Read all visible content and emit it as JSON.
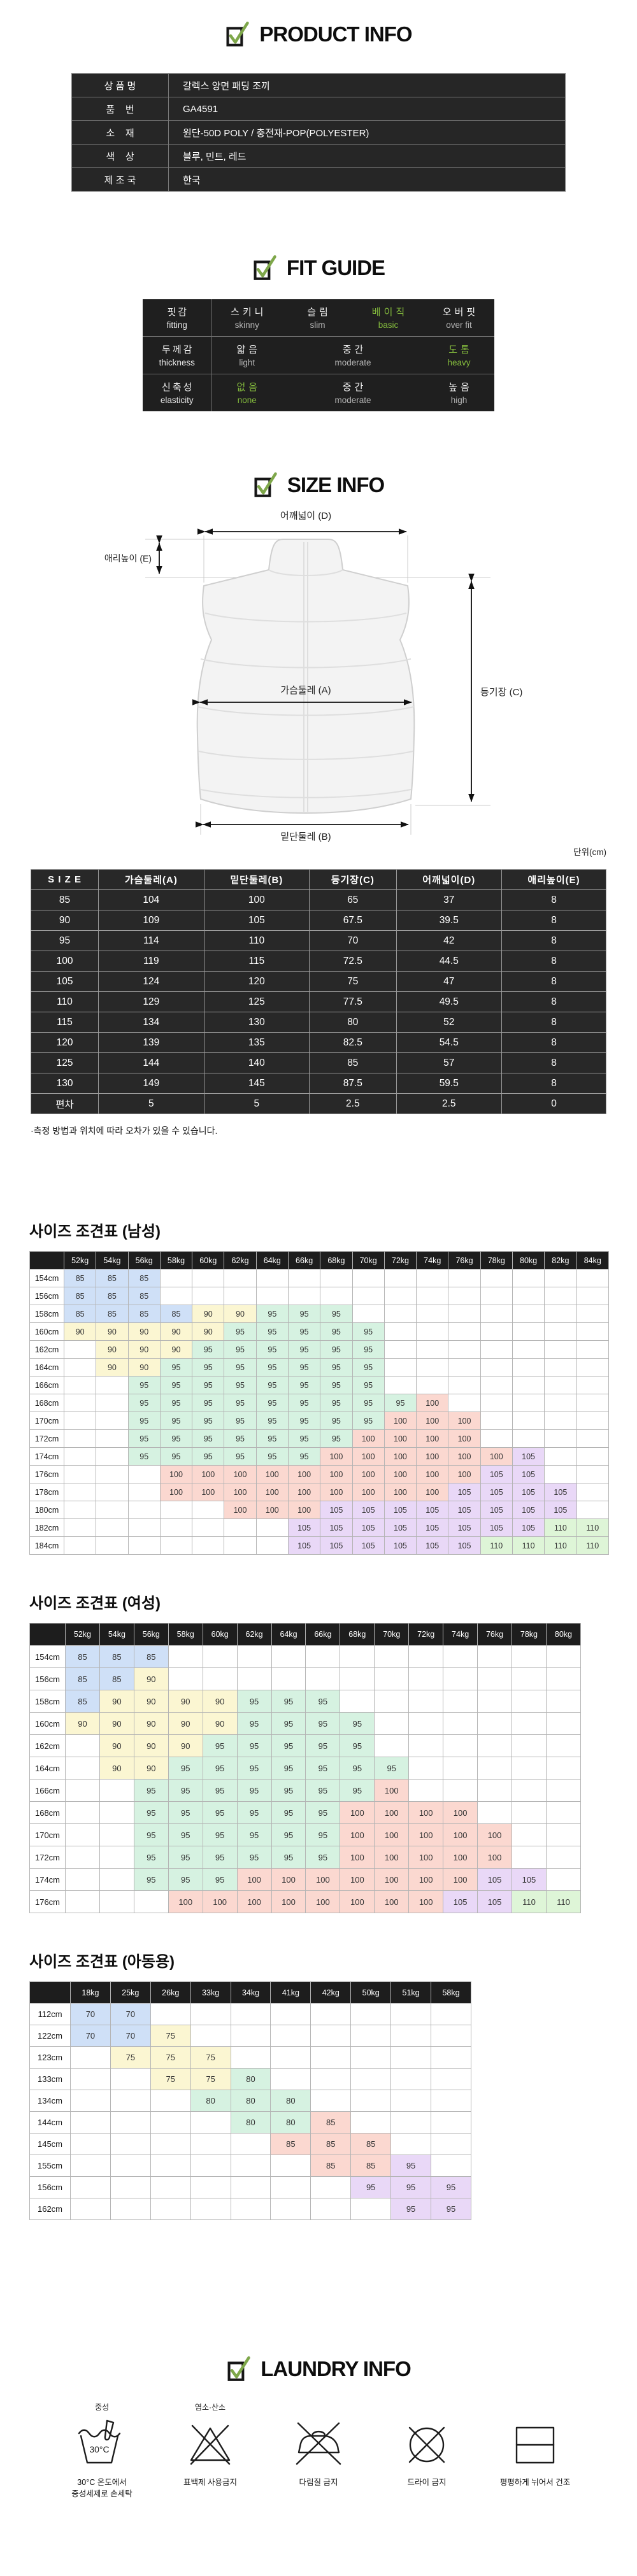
{
  "colors": {
    "accent_green": "#84bb3d",
    "check_green": "#7ea74a",
    "dark_table_bg": "#262626",
    "cell_blue": "#cfe0f7",
    "cell_yellow": "#fbf6d2",
    "cell_mint": "#d6f2e1",
    "cell_pink": "#fbd8d0",
    "cell_purple": "#e9d8f7",
    "cell_green": "#def5d7"
  },
  "product_info": {
    "title": "PRODUCT INFO",
    "rows": [
      {
        "label": "상 품 명",
        "value": "갈렉스 양면 패딩 조끼"
      },
      {
        "label": "품    번",
        "value": "GA4591"
      },
      {
        "label": "소    재",
        "value": "원단-50D POLY / 충전재-POP(POLYESTER)"
      },
      {
        "label": "색    상",
        "value": "블루, 민트, 레드"
      },
      {
        "label": "제 조 국",
        "value": "한국"
      }
    ]
  },
  "fit_guide": {
    "title": "FIT GUIDE",
    "rows": [
      {
        "label_ko": "핏감",
        "label_en": "fitting",
        "cells": [
          {
            "ko": "스키니",
            "en": "skinny",
            "span": 1,
            "selected": false
          },
          {
            "ko": "슬림",
            "en": "slim",
            "span": 1,
            "selected": false
          },
          {
            "ko": "베이직",
            "en": "basic",
            "span": 1,
            "selected": true
          },
          {
            "ko": "오버핏",
            "en": "over fit",
            "span": 1,
            "selected": false
          }
        ]
      },
      {
        "label_ko": "두께감",
        "label_en": "thickness",
        "cells": [
          {
            "ko": "얇음",
            "en": "light",
            "span": 1,
            "selected": false
          },
          {
            "ko": "중간",
            "en": "moderate",
            "span": 2,
            "selected": false
          },
          {
            "ko": "도톰",
            "en": "heavy",
            "span": 1,
            "selected": true
          }
        ]
      },
      {
        "label_ko": "신축성",
        "label_en": "elasticity",
        "cells": [
          {
            "ko": "없음",
            "en": "none",
            "span": 1,
            "selected": true
          },
          {
            "ko": "중간",
            "en": "moderate",
            "span": 2,
            "selected": false
          },
          {
            "ko": "높음",
            "en": "high",
            "span": 1,
            "selected": false
          }
        ]
      }
    ]
  },
  "size_info": {
    "title": "SIZE INFO",
    "unit_note": "단위(cm)",
    "diagram_labels": {
      "shoulder": "어깨넓이 (D)",
      "collar": "애리높이 (E)",
      "chest": "가슴둘레 (A)",
      "length": "등기장 (C)",
      "hem": "밑단둘레 (B)"
    },
    "table": {
      "headers": [
        "S I Z E",
        "가슴둘레(A)",
        "밑단둘레(B)",
        "등기장(C)",
        "어깨넓이(D)",
        "애리높이(E)"
      ],
      "rows": [
        [
          "85",
          "104",
          "100",
          "65",
          "37",
          "8"
        ],
        [
          "90",
          "109",
          "105",
          "67.5",
          "39.5",
          "8"
        ],
        [
          "95",
          "114",
          "110",
          "70",
          "42",
          "8"
        ],
        [
          "100",
          "119",
          "115",
          "72.5",
          "44.5",
          "8"
        ],
        [
          "105",
          "124",
          "120",
          "75",
          "47",
          "8"
        ],
        [
          "110",
          "129",
          "125",
          "77.5",
          "49.5",
          "8"
        ],
        [
          "115",
          "134",
          "130",
          "80",
          "52",
          "8"
        ],
        [
          "120",
          "139",
          "135",
          "82.5",
          "54.5",
          "8"
        ],
        [
          "125",
          "144",
          "140",
          "85",
          "57",
          "8"
        ],
        [
          "130",
          "149",
          "145",
          "87.5",
          "59.5",
          "8"
        ],
        [
          "편차",
          "5",
          "5",
          "2.5",
          "2.5",
          "0"
        ]
      ]
    },
    "note": "·측정 방법과 위치에 따라 오차가 있을 수 있습니다."
  },
  "size_charts": [
    {
      "title": "사이즈 조견표 (남성)",
      "weights": [
        "52kg",
        "54kg",
        "56kg",
        "58kg",
        "60kg",
        "62kg",
        "64kg",
        "66kg",
        "68kg",
        "70kg",
        "72kg",
        "74kg",
        "76kg",
        "78kg",
        "80kg",
        "82kg",
        "84kg"
      ],
      "color_map": {
        "85": "#cfe0f7",
        "90": "#fbf6d2",
        "95": "#d6f2e1",
        "100": "#fbd8d0",
        "105": "#e9d8f7",
        "110": "#def5d7"
      },
      "rows": [
        {
          "height": "154cm",
          "cells": [
            "85",
            "85",
            "85",
            "",
            "",
            "",
            "",
            "",
            "",
            "",
            "",
            "",
            "",
            "",
            "",
            "",
            ""
          ]
        },
        {
          "height": "156cm",
          "cells": [
            "85",
            "85",
            "85",
            "",
            "",
            "",
            "",
            "",
            "",
            "",
            "",
            "",
            "",
            "",
            "",
            "",
            ""
          ]
        },
        {
          "height": "158cm",
          "cells": [
            "85",
            "85",
            "85",
            "85",
            "90",
            "90",
            "95",
            "95",
            "95",
            "",
            "",
            "",
            "",
            "",
            "",
            "",
            ""
          ]
        },
        {
          "height": "160cm",
          "cells": [
            "90",
            "90",
            "90",
            "90",
            "90",
            "95",
            "95",
            "95",
            "95",
            "95",
            "",
            "",
            "",
            "",
            "",
            "",
            ""
          ]
        },
        {
          "height": "162cm",
          "cells": [
            "",
            "90",
            "90",
            "90",
            "95",
            "95",
            "95",
            "95",
            "95",
            "95",
            "",
            "",
            "",
            "",
            "",
            "",
            ""
          ]
        },
        {
          "height": "164cm",
          "cells": [
            "",
            "90",
            "90",
            "95",
            "95",
            "95",
            "95",
            "95",
            "95",
            "95",
            "",
            "",
            "",
            "",
            "",
            "",
            ""
          ]
        },
        {
          "height": "166cm",
          "cells": [
            "",
            "",
            "95",
            "95",
            "95",
            "95",
            "95",
            "95",
            "95",
            "95",
            "",
            "",
            "",
            "",
            "",
            "",
            ""
          ]
        },
        {
          "height": "168cm",
          "cells": [
            "",
            "",
            "95",
            "95",
            "95",
            "95",
            "95",
            "95",
            "95",
            "95",
            "95",
            "100",
            "",
            "",
            "",
            "",
            ""
          ]
        },
        {
          "height": "170cm",
          "cells": [
            "",
            "",
            "95",
            "95",
            "95",
            "95",
            "95",
            "95",
            "95",
            "95",
            "100",
            "100",
            "100",
            "",
            "",
            "",
            ""
          ]
        },
        {
          "height": "172cm",
          "cells": [
            "",
            "",
            "95",
            "95",
            "95",
            "95",
            "95",
            "95",
            "95",
            "100",
            "100",
            "100",
            "100",
            "",
            "",
            "",
            ""
          ]
        },
        {
          "height": "174cm",
          "cells": [
            "",
            "",
            "95",
            "95",
            "95",
            "95",
            "95",
            "95",
            "100",
            "100",
            "100",
            "100",
            "100",
            "100",
            "105",
            "",
            ""
          ]
        },
        {
          "height": "176cm",
          "cells": [
            "",
            "",
            "",
            "100",
            "100",
            "100",
            "100",
            "100",
            "100",
            "100",
            "100",
            "100",
            "100",
            "105",
            "105",
            "",
            ""
          ]
        },
        {
          "height": "178cm",
          "cells": [
            "",
            "",
            "",
            "100",
            "100",
            "100",
            "100",
            "100",
            "100",
            "100",
            "100",
            "100",
            "105",
            "105",
            "105",
            "105",
            ""
          ]
        },
        {
          "height": "180cm",
          "cells": [
            "",
            "",
            "",
            "",
            "",
            "100",
            "100",
            "100",
            "105",
            "105",
            "105",
            "105",
            "105",
            "105",
            "105",
            "105",
            ""
          ]
        },
        {
          "height": "182cm",
          "cells": [
            "",
            "",
            "",
            "",
            "",
            "",
            "",
            "105",
            "105",
            "105",
            "105",
            "105",
            "105",
            "105",
            "105",
            "110",
            "110"
          ]
        },
        {
          "height": "184cm",
          "cells": [
            "",
            "",
            "",
            "",
            "",
            "",
            "",
            "105",
            "105",
            "105",
            "105",
            "105",
            "105",
            "110",
            "110",
            "110",
            "110"
          ]
        }
      ]
    },
    {
      "title": "사이즈 조견표 (여성)",
      "weights": [
        "52kg",
        "54kg",
        "56kg",
        "58kg",
        "60kg",
        "62kg",
        "64kg",
        "66kg",
        "68kg",
        "70kg",
        "72kg",
        "74kg",
        "76kg",
        "78kg",
        "80kg"
      ],
      "color_map": {
        "85": "#cfe0f7",
        "90": "#fbf6d2",
        "95": "#d6f2e1",
        "100": "#fbd8d0",
        "105": "#e9d8f7",
        "110": "#def5d7"
      },
      "rows": [
        {
          "height": "154cm",
          "cells": [
            "85",
            "85",
            "85",
            "",
            "",
            "",
            "",
            "",
            "",
            "",
            "",
            "",
            "",
            "",
            ""
          ]
        },
        {
          "height": "156cm",
          "cells": [
            "85",
            "85",
            "90",
            "",
            "",
            "",
            "",
            "",
            "",
            "",
            "",
            "",
            "",
            "",
            ""
          ]
        },
        {
          "height": "158cm",
          "cells": [
            "85",
            "90",
            "90",
            "90",
            "90",
            "95",
            "95",
            "95",
            "",
            "",
            "",
            "",
            "",
            "",
            ""
          ]
        },
        {
          "height": "160cm",
          "cells": [
            "90",
            "90",
            "90",
            "90",
            "90",
            "95",
            "95",
            "95",
            "95",
            "",
            "",
            "",
            "",
            "",
            ""
          ]
        },
        {
          "height": "162cm",
          "cells": [
            "",
            "90",
            "90",
            "90",
            "95",
            "95",
            "95",
            "95",
            "95",
            "",
            "",
            "",
            "",
            "",
            ""
          ]
        },
        {
          "height": "164cm",
          "cells": [
            "",
            "90",
            "90",
            "95",
            "95",
            "95",
            "95",
            "95",
            "95",
            "95",
            "",
            "",
            "",
            "",
            ""
          ]
        },
        {
          "height": "166cm",
          "cells": [
            "",
            "",
            "95",
            "95",
            "95",
            "95",
            "95",
            "95",
            "95",
            "100",
            "",
            "",
            "",
            "",
            ""
          ]
        },
        {
          "height": "168cm",
          "cells": [
            "",
            "",
            "95",
            "95",
            "95",
            "95",
            "95",
            "95",
            "100",
            "100",
            "100",
            "100",
            "",
            "",
            ""
          ]
        },
        {
          "height": "170cm",
          "cells": [
            "",
            "",
            "95",
            "95",
            "95",
            "95",
            "95",
            "95",
            "100",
            "100",
            "100",
            "100",
            "100",
            "",
            ""
          ]
        },
        {
          "height": "172cm",
          "cells": [
            "",
            "",
            "95",
            "95",
            "95",
            "95",
            "95",
            "95",
            "100",
            "100",
            "100",
            "100",
            "100",
            "",
            ""
          ]
        },
        {
          "height": "174cm",
          "cells": [
            "",
            "",
            "95",
            "95",
            "95",
            "100",
            "100",
            "100",
            "100",
            "100",
            "100",
            "100",
            "105",
            "105",
            ""
          ]
        },
        {
          "height": "176cm",
          "cells": [
            "",
            "",
            "",
            "100",
            "100",
            "100",
            "100",
            "100",
            "100",
            "100",
            "100",
            "105",
            "105",
            "110",
            "110"
          ]
        }
      ]
    },
    {
      "title": "사이즈 조견표 (아동용)",
      "weights": [
        "18kg",
        "25kg",
        "26kg",
        "33kg",
        "34kg",
        "41kg",
        "42kg",
        "50kg",
        "51kg",
        "58kg"
      ],
      "color_map": {
        "70": "#cfe0f7",
        "75": "#fbf6d2",
        "80": "#d6f2e1",
        "85": "#fbd8d0",
        "95": "#e9d8f7"
      },
      "rows": [
        {
          "height": "112cm",
          "cells": [
            "70",
            "70",
            "",
            "",
            "",
            "",
            "",
            "",
            "",
            ""
          ]
        },
        {
          "height": "122cm",
          "cells": [
            "70",
            "70",
            "75",
            "",
            "",
            "",
            "",
            "",
            "",
            ""
          ]
        },
        {
          "height": "123cm",
          "cells": [
            "",
            "75",
            "75",
            "75",
            "",
            "",
            "",
            "",
            "",
            ""
          ]
        },
        {
          "height": "133cm",
          "cells": [
            "",
            "",
            "75",
            "75",
            "80",
            "",
            "",
            "",
            "",
            ""
          ]
        },
        {
          "height": "134cm",
          "cells": [
            "",
            "",
            "",
            "80",
            "80",
            "80",
            "",
            "",
            "",
            ""
          ]
        },
        {
          "height": "144cm",
          "cells": [
            "",
            "",
            "",
            "",
            "80",
            "80",
            "85",
            "",
            "",
            ""
          ]
        },
        {
          "height": "145cm",
          "cells": [
            "",
            "",
            "",
            "",
            "",
            "85",
            "85",
            "85",
            "",
            ""
          ]
        },
        {
          "height": "155cm",
          "cells": [
            "",
            "",
            "",
            "",
            "",
            "",
            "85",
            "85",
            "95",
            ""
          ]
        },
        {
          "height": "156cm",
          "cells": [
            "",
            "",
            "",
            "",
            "",
            "",
            "",
            "95",
            "95",
            "95"
          ]
        },
        {
          "height": "162cm",
          "cells": [
            "",
            "",
            "",
            "",
            "",
            "",
            "",
            "",
            "95",
            "95"
          ]
        }
      ]
    }
  ],
  "laundry": {
    "title": "LAUNDRY INFO",
    "items": [
      {
        "icon": "handwash-30-icon",
        "top_label": "중성",
        "inner_label": "30°C",
        "caption": "30°C 온도에서",
        "caption2": "중성세제로 손세탁"
      },
      {
        "icon": "no-bleach-icon",
        "top_label": "염소·산소",
        "caption": "표백제 사용금지"
      },
      {
        "icon": "no-iron-icon",
        "caption": "다림질 금지"
      },
      {
        "icon": "no-dryclean-icon",
        "caption": "드라이 금지"
      },
      {
        "icon": "dry-flat-icon",
        "caption": "평평하게 뉘어서 건조"
      }
    ]
  }
}
